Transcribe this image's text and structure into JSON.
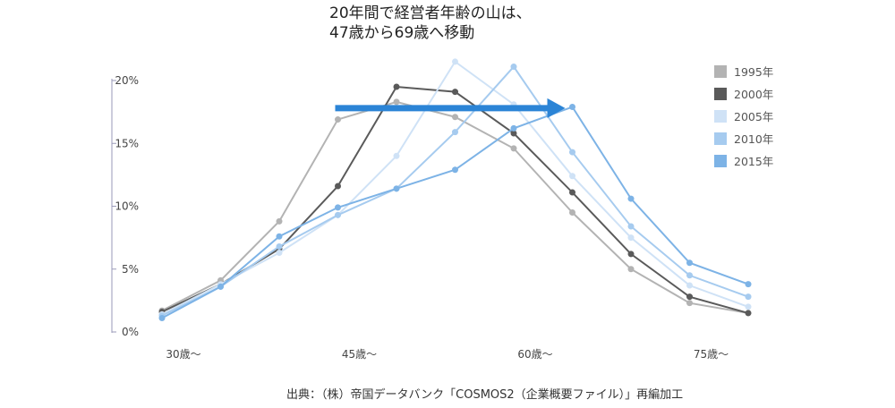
{
  "chart_data": {
    "type": "line",
    "title": [
      "20年間で経営者年齢の山は、",
      "47歳から69歳へ移動"
    ],
    "xlabel": "",
    "ylabel": "",
    "x": [
      30,
      35,
      40,
      45,
      50,
      55,
      60,
      65,
      70,
      75,
      80
    ],
    "x_tick_labels": [
      {
        "x": 30,
        "label": "30歳〜"
      },
      {
        "x": 45,
        "label": "45歳〜"
      },
      {
        "x": 60,
        "label": "60歳〜"
      },
      {
        "x": 75,
        "label": "75歳〜"
      }
    ],
    "y_ticks": [
      {
        "v": 0,
        "label": "0%"
      },
      {
        "v": 5,
        "label": "5%"
      },
      {
        "v": 10,
        "label": "10%"
      },
      {
        "v": 15,
        "label": "15%"
      },
      {
        "v": 20,
        "label": "20%"
      }
    ],
    "ylim": [
      0,
      20
    ],
    "grid": false,
    "legend_position": "top-right",
    "series": [
      {
        "name": "1995年",
        "color": "#b3b3b3",
        "values": [
          1.7,
          4.1,
          8.8,
          16.9,
          18.3,
          17.1,
          14.6,
          9.5,
          5.0,
          2.3,
          1.5
        ]
      },
      {
        "name": "2000年",
        "color": "#5a5a5a",
        "values": [
          1.6,
          3.8,
          6.6,
          11.6,
          19.5,
          19.1,
          15.8,
          11.1,
          6.2,
          2.8,
          1.5
        ]
      },
      {
        "name": "2005年",
        "color": "#cfe2f6",
        "values": [
          1.4,
          3.8,
          6.3,
          9.3,
          14.0,
          21.5,
          18.1,
          12.4,
          7.5,
          3.7,
          2.0
        ]
      },
      {
        "name": "2010年",
        "color": "#a6cbef",
        "values": [
          1.3,
          3.6,
          6.8,
          9.3,
          11.4,
          15.9,
          21.1,
          14.3,
          8.4,
          4.5,
          2.8
        ]
      },
      {
        "name": "2015年",
        "color": "#7db3e6",
        "values": [
          1.1,
          3.6,
          7.6,
          9.9,
          11.4,
          12.9,
          16.2,
          17.9,
          10.6,
          5.5,
          3.8
        ]
      }
    ],
    "annotation_arrow": {
      "from_x": 45,
      "to_x": 65,
      "y": 17.8,
      "color": "#2b84d6"
    }
  },
  "source": "出典：（株）帝国データバンク「COSMOS2（企業概要ファイル）」再編加工"
}
